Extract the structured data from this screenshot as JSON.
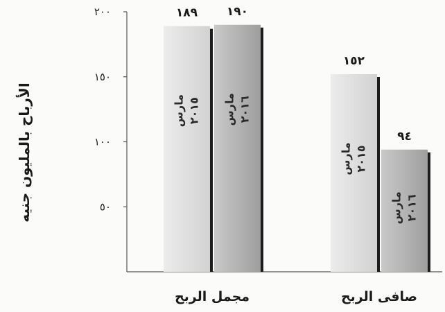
{
  "chart_data": {
    "type": "bar",
    "ylabel": "الأرباح بالمليون جنيه",
    "xlabel": "",
    "title": "",
    "ylim": [
      0,
      200
    ],
    "y_ticks": [
      {
        "value": 50,
        "label": "٥٠"
      },
      {
        "value": 100,
        "label": "١٠٠"
      },
      {
        "value": 150,
        "label": "١٥٠"
      },
      {
        "value": 200,
        "label": "٢٠٠"
      }
    ],
    "grid": false,
    "categories": [
      "مجمل الربح",
      "صافى الربح"
    ],
    "series": [
      {
        "name": "مارس ٢٠١٥",
        "line1": "مارس",
        "line2": "٢٠١٥",
        "values": [
          189,
          152
        ],
        "labels": [
          "١٨٩",
          "١٥٢"
        ],
        "color": "#dcdcdc"
      },
      {
        "name": "مارس ٢٠١٦",
        "line1": "مارس",
        "line2": "٢٠١٦",
        "values": [
          190,
          94
        ],
        "labels": [
          "١٩٠",
          "٩٤"
        ],
        "color": "#b4b4b4"
      }
    ]
  }
}
